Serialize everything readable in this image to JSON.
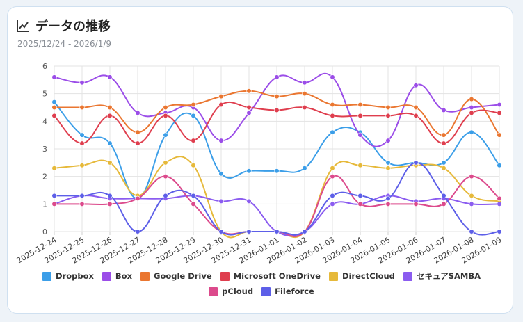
{
  "header": {
    "title": "データの推移",
    "date_range": "2025/12/24 - 2026/1/9",
    "icon": "line-chart-icon"
  },
  "chart_data": {
    "type": "line",
    "title": "データの推移",
    "categories": [
      "2025-12-24",
      "2025-12-25",
      "2025-12-26",
      "2025-12-27",
      "2025-12-28",
      "2025-12-29",
      "2025-12-30",
      "2025-12-31",
      "2026-01-01",
      "2026-01-02",
      "2026-01-03",
      "2026-01-04",
      "2026-01-05",
      "2026-01-06",
      "2026-01-07",
      "2026-01-08",
      "2026-01-09"
    ],
    "ylim": [
      0,
      6
    ],
    "yticks": [
      "0",
      "1",
      "2",
      "3",
      "4",
      "5",
      "6"
    ],
    "grid": true,
    "legend_position": "bottom",
    "series": [
      {
        "name": "Dropbox",
        "color": "#3b9ee8",
        "values": [
          4.7,
          3.5,
          3.2,
          1.2,
          3.5,
          4.2,
          2.1,
          2.2,
          2.2,
          2.3,
          3.6,
          3.6,
          2.5,
          2.5,
          2.5,
          3.6,
          2.4
        ]
      },
      {
        "name": "Box",
        "color": "#9b4de8",
        "values": [
          5.6,
          5.4,
          5.6,
          4.3,
          4.3,
          4.5,
          3.3,
          4.3,
          5.6,
          5.4,
          5.6,
          3.5,
          3.3,
          5.3,
          4.4,
          4.5,
          4.6
        ]
      },
      {
        "name": "Google Drive",
        "color": "#ea7630",
        "values": [
          4.5,
          4.5,
          4.5,
          3.6,
          4.5,
          4.6,
          4.9,
          5.1,
          4.9,
          5.0,
          4.6,
          4.6,
          4.5,
          4.5,
          3.5,
          4.8,
          3.5
        ]
      },
      {
        "name": "Microsoft OneDrive",
        "color": "#df3e4e",
        "values": [
          4.2,
          3.2,
          4.2,
          3.2,
          4.2,
          3.3,
          4.6,
          4.5,
          4.4,
          4.5,
          4.2,
          4.2,
          4.2,
          4.2,
          3.2,
          4.3,
          4.3
        ]
      },
      {
        "name": "DirectCloud",
        "color": "#e6b93a",
        "values": [
          2.3,
          2.4,
          2.5,
          1.3,
          2.5,
          2.4,
          0,
          0,
          0,
          0,
          2.3,
          2.4,
          2.3,
          2.4,
          2.3,
          1.3,
          1.1
        ]
      },
      {
        "name": "セキュアSAMBA",
        "color": "#8b5cf0",
        "values": [
          1.0,
          1.3,
          1.2,
          1.2,
          1.2,
          1.3,
          1.1,
          1.1,
          0,
          0,
          1.0,
          1.0,
          1.3,
          1.1,
          1.2,
          1.0,
          1.0
        ]
      },
      {
        "name": "pCloud",
        "color": "#dc4a8c",
        "values": [
          1.0,
          1.0,
          1.0,
          1.2,
          2.0,
          1.0,
          0,
          0,
          0,
          0,
          2.0,
          1.0,
          1.0,
          1.0,
          1.0,
          2.0,
          1.2
        ]
      },
      {
        "name": "Fileforce",
        "color": "#5d5fe8",
        "values": [
          1.3,
          1.3,
          1.3,
          0,
          1.3,
          1.3,
          0,
          0,
          0,
          0,
          1.3,
          1.3,
          1.2,
          2.5,
          1.3,
          0,
          0
        ]
      }
    ]
  }
}
